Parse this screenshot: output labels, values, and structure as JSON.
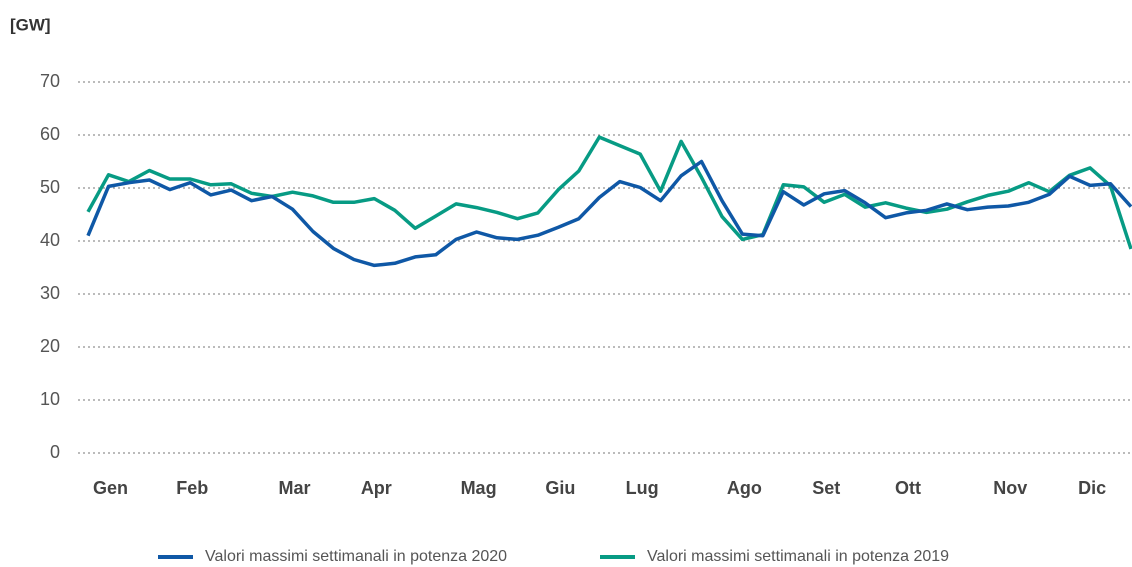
{
  "chart_data": {
    "type": "line",
    "y_label": "[GW]",
    "categories": [
      null,
      "Gen",
      null,
      null,
      null,
      "Feb",
      null,
      null,
      null,
      null,
      "Mar",
      null,
      null,
      null,
      "Apr",
      null,
      null,
      null,
      null,
      "Mag",
      null,
      null,
      null,
      "Giu",
      null,
      null,
      null,
      "Lug",
      null,
      null,
      null,
      null,
      "Ago",
      null,
      null,
      null,
      "Set",
      null,
      null,
      null,
      "Ott",
      null,
      null,
      null,
      null,
      "Nov",
      null,
      null,
      null,
      "Dic",
      null,
      null
    ],
    "series": [
      {
        "name": "Valori massimi settimanali in potenza 2020",
        "color": "#0f58a6",
        "values": [
          41,
          50.3,
          51,
          51.5,
          49.7,
          51,
          48.7,
          49.6,
          47.6,
          48.4,
          46,
          41.8,
          38.6,
          36.5,
          35.4,
          35.8,
          37,
          37.4,
          40.3,
          41.7,
          40.6,
          40.3,
          41.1,
          42.6,
          44.2,
          48.2,
          51.2,
          50.1,
          47.6,
          52.3,
          55,
          47.6,
          41.3,
          41,
          49.3,
          46.8,
          48.9,
          49.5,
          47.2,
          44.4,
          45.3,
          45.8,
          47,
          45.9,
          46.4,
          46.6,
          47.3,
          48.8,
          52.2,
          50.5,
          50.8,
          46.5
        ]
      },
      {
        "name": "Valori massimi settimanali in potenza 2019",
        "color": "#079b84",
        "values": [
          45.5,
          52.5,
          51.2,
          53.3,
          51.7,
          51.7,
          50.6,
          50.8,
          49,
          48.4,
          49.2,
          48.5,
          47.3,
          47.3,
          48,
          45.8,
          42.4,
          44.7,
          47,
          46.3,
          45.4,
          44.2,
          45.3,
          49.7,
          53.2,
          59.6,
          58,
          56.4,
          49.4,
          58.8,
          52,
          44.6,
          40.3,
          41.2,
          50.6,
          50.2,
          47.3,
          48.8,
          46.4,
          47.2,
          46.2,
          45.4,
          46,
          47.4,
          48.6,
          49.4,
          51,
          49.3,
          52.4,
          53.8,
          50.4,
          38.5
        ]
      }
    ],
    "ylim": [
      0,
      70
    ],
    "yticks": [
      0,
      10,
      20,
      30,
      40,
      50,
      60,
      70
    ],
    "grid": true,
    "legend": "bottom"
  }
}
